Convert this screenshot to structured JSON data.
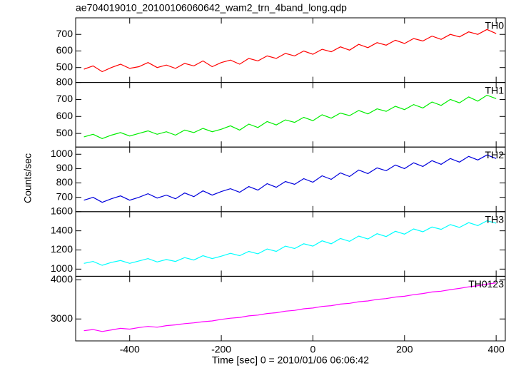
{
  "chart_data": {
    "type": "line",
    "title": "ae704019010_20100106060642_wam2_trn_4band_long.qdp",
    "xlabel": "Time [sec] 0 = 2010/01/06 06:06:42",
    "ylabel": "Counts/sec",
    "xlim": [
      -518,
      420
    ],
    "xticks": [
      -400,
      -200,
      0,
      200,
      400
    ],
    "x": [
      -500,
      -480,
      -460,
      -440,
      -420,
      -400,
      -380,
      -360,
      -340,
      -320,
      -300,
      -280,
      -260,
      -240,
      -220,
      -200,
      -180,
      -160,
      -140,
      -120,
      -100,
      -80,
      -60,
      -40,
      -20,
      0,
      20,
      40,
      60,
      80,
      100,
      120,
      140,
      160,
      180,
      200,
      220,
      240,
      260,
      280,
      300,
      320,
      340,
      360,
      380,
      400
    ],
    "series": [
      {
        "name": "TH0",
        "color": "#ff0000",
        "ylim": [
          410,
          800
        ],
        "yticks": [
          500,
          600,
          700
        ],
        "values": [
          490,
          510,
          475,
          500,
          520,
          495,
          505,
          530,
          500,
          515,
          495,
          525,
          510,
          540,
          505,
          530,
          545,
          520,
          555,
          540,
          570,
          555,
          585,
          570,
          600,
          580,
          610,
          595,
          625,
          605,
          640,
          620,
          650,
          635,
          665,
          645,
          675,
          660,
          690,
          670,
          700,
          685,
          715,
          700,
          730,
          705
        ]
      },
      {
        "name": "TH1",
        "color": "#00ee00",
        "ylim": [
          420,
          800
        ],
        "yticks": [
          500,
          600,
          700,
          800
        ],
        "values": [
          480,
          495,
          470,
          490,
          505,
          485,
          500,
          515,
          495,
          510,
          490,
          520,
          505,
          530,
          510,
          525,
          545,
          520,
          555,
          535,
          570,
          550,
          580,
          565,
          595,
          575,
          610,
          590,
          620,
          605,
          635,
          615,
          645,
          630,
          660,
          640,
          670,
          650,
          685,
          665,
          700,
          680,
          715,
          690,
          725,
          705
        ]
      },
      {
        "name": "TH2",
        "color": "#0000dd",
        "ylim": [
          600,
          1050
        ],
        "yticks": [
          700,
          800,
          900,
          1000
        ],
        "values": [
          680,
          700,
          665,
          690,
          710,
          680,
          700,
          725,
          695,
          715,
          690,
          730,
          705,
          745,
          715,
          740,
          760,
          735,
          775,
          750,
          795,
          770,
          810,
          790,
          830,
          805,
          850,
          825,
          870,
          845,
          890,
          865,
          905,
          885,
          925,
          900,
          940,
          915,
          955,
          930,
          970,
          945,
          985,
          960,
          995,
          970
        ]
      },
      {
        "name": "TH3",
        "color": "#00ffff",
        "ylim": [
          925,
          1600
        ],
        "yticks": [
          1000,
          1200,
          1400,
          1600
        ],
        "values": [
          1060,
          1080,
          1040,
          1070,
          1090,
          1060,
          1085,
          1110,
          1075,
          1100,
          1080,
          1120,
          1095,
          1140,
          1110,
          1135,
          1165,
          1140,
          1185,
          1160,
          1210,
          1185,
          1240,
          1215,
          1265,
          1240,
          1295,
          1265,
          1320,
          1290,
          1345,
          1315,
          1370,
          1340,
          1395,
          1365,
          1420,
          1390,
          1440,
          1415,
          1465,
          1435,
          1485,
          1455,
          1505,
          1480
        ]
      },
      {
        "name": "TH0123",
        "color": "#ff00ff",
        "ylim": [
          2440,
          4090
        ],
        "yticks": [
          3000,
          4000
        ],
        "values": [
          2700,
          2730,
          2680,
          2720,
          2760,
          2740,
          2780,
          2810,
          2790,
          2830,
          2850,
          2880,
          2900,
          2930,
          2950,
          2990,
          3020,
          3040,
          3080,
          3100,
          3140,
          3160,
          3200,
          3220,
          3260,
          3280,
          3320,
          3340,
          3380,
          3400,
          3440,
          3460,
          3500,
          3520,
          3560,
          3580,
          3620,
          3650,
          3690,
          3710,
          3750,
          3780,
          3820,
          3850,
          3890,
          3920
        ]
      }
    ]
  }
}
